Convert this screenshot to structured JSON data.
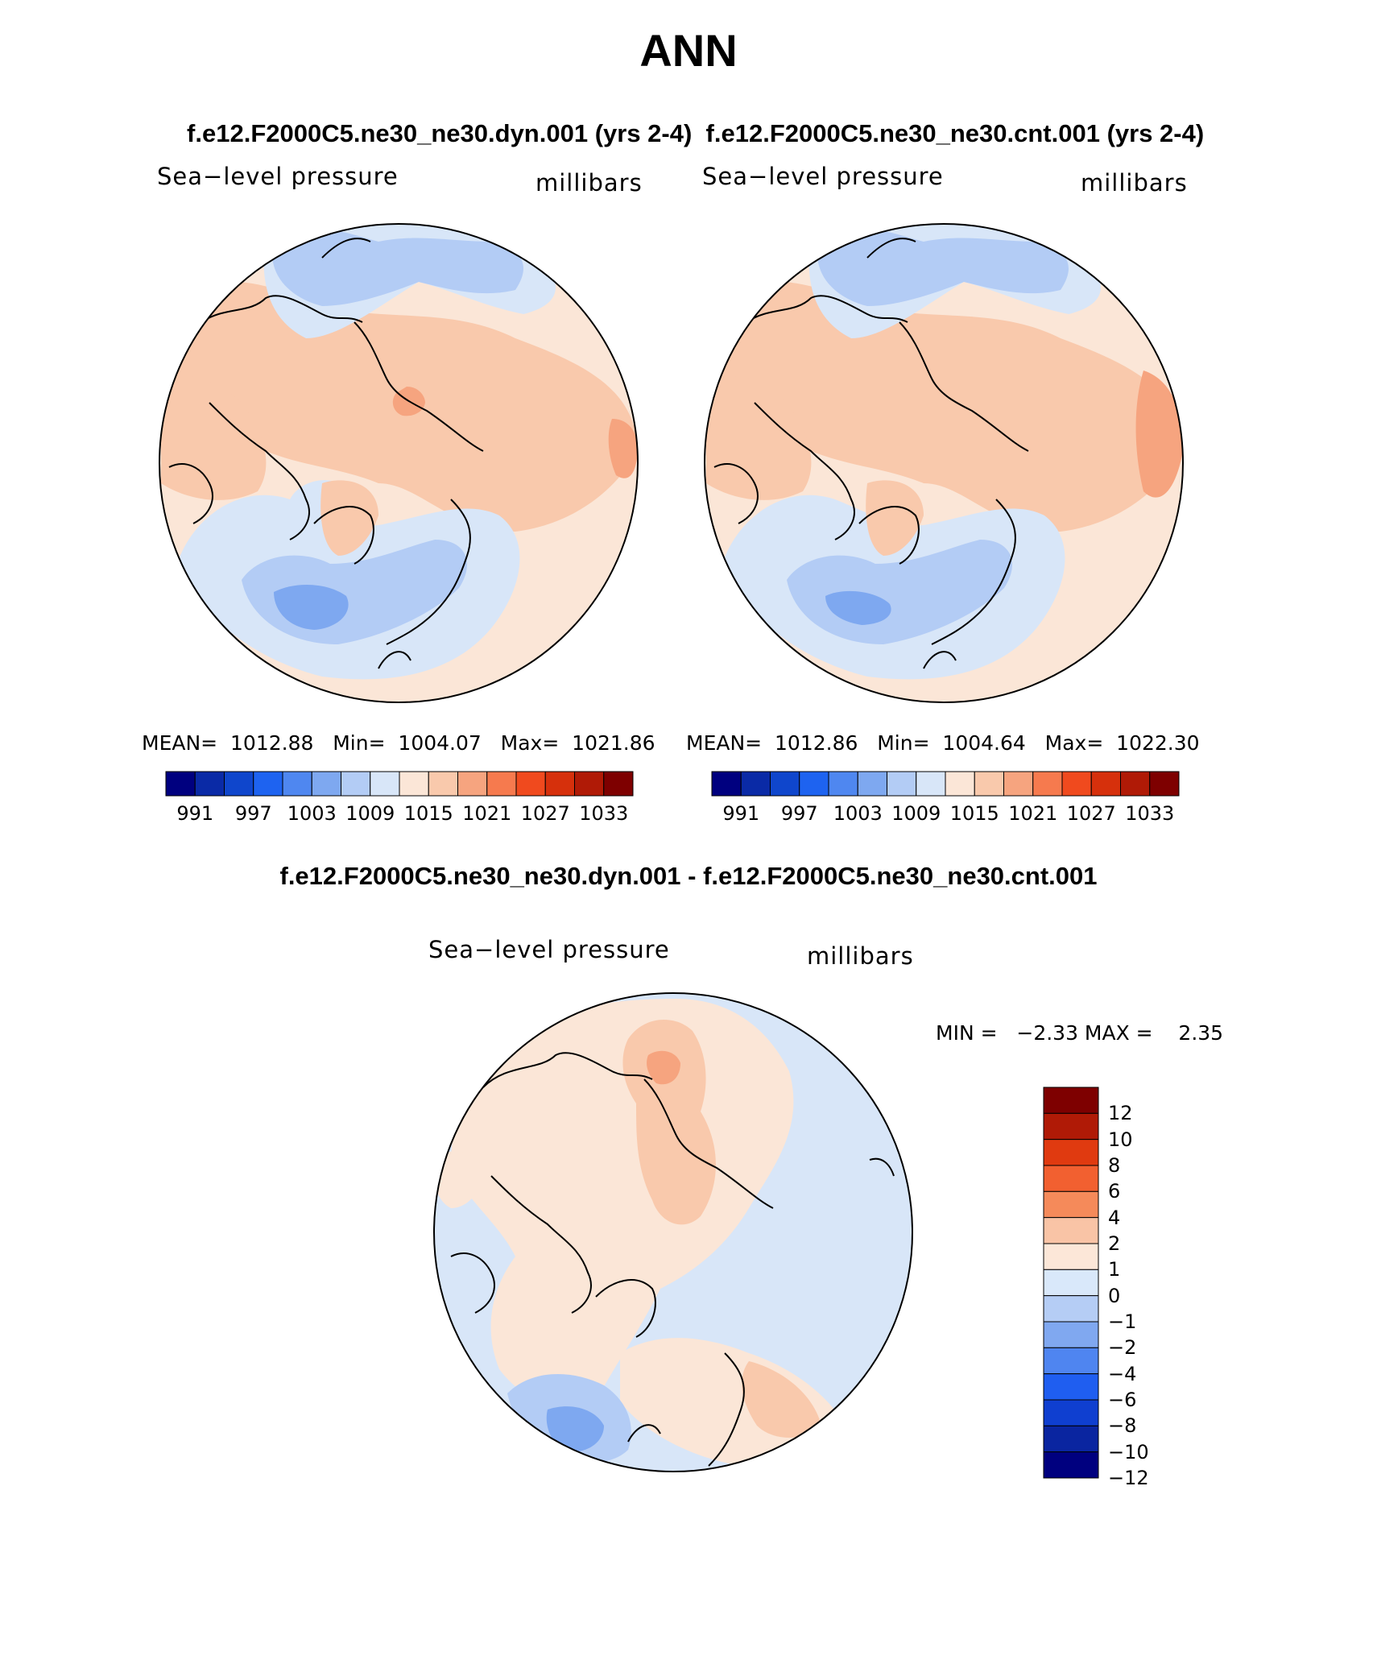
{
  "figure": {
    "title": "ANN",
    "top_subtitle_left": "f.e12.F2000C5.ne30_ne30.dyn.001 (yrs 2-4)",
    "top_subtitle_right": "f.e12.F2000C5.ne30_ne30.cnt.001 (yrs 2-4)",
    "diff_subtitle": "f.e12.F2000C5.ne30_ne30.dyn.001 - f.e12.F2000C5.ne30_ne30.cnt.001"
  },
  "panels": [
    {
      "variable": "Sea−level pressure",
      "units": "millibars",
      "stats": "MEAN=  1012.88   Min=  1004.07   Max=  1021.86"
    },
    {
      "variable": "Sea−level pressure",
      "units": "millibars",
      "stats": "MEAN=  1012.86   Min=  1004.64   Max=  1022.30"
    }
  ],
  "diff_panel": {
    "variable": "Sea−level pressure",
    "units": "millibars",
    "stats": "MIN =   −2.33 MAX =    2.35"
  },
  "colorbar_abs": {
    "colors": [
      "#00007f",
      "#0a2aa6",
      "#0f46cc",
      "#1e63f0",
      "#4f87f0",
      "#7ea8f0",
      "#b3ccf5",
      "#d8e6f8",
      "#fbe6d7",
      "#f9c9ac",
      "#f6a47f",
      "#f67a4e",
      "#f04a1e",
      "#d6300c",
      "#b01a06",
      "#7e0000"
    ],
    "labels": [
      "991",
      "997",
      "1003",
      "1009",
      "1015",
      "1021",
      "1027",
      "1033"
    ]
  },
  "colorbar_diff": {
    "colors": [
      "#7e0000",
      "#b01a06",
      "#e03a10",
      "#f26030",
      "#f58a5a",
      "#f9c4a6",
      "#fce7d8",
      "#d9e8fa",
      "#b5cdf5",
      "#80a8f0",
      "#4f85f0",
      "#1f5ef0",
      "#0f3fd0",
      "#0a25a0",
      "#00007f"
    ],
    "labels": [
      "12",
      "10",
      "8",
      "6",
      "4",
      "2",
      "1",
      "0",
      "−1",
      "−2",
      "−4",
      "−6",
      "−8",
      "−10",
      "−12"
    ]
  },
  "map_colors": {
    "light_blue": "#d8e6f8",
    "blue": "#b3ccf5",
    "mid_blue": "#7ea8f0",
    "cream": "#fbe6d7",
    "peach": "#f9c9ac",
    "salmon": "#f6a47f"
  }
}
